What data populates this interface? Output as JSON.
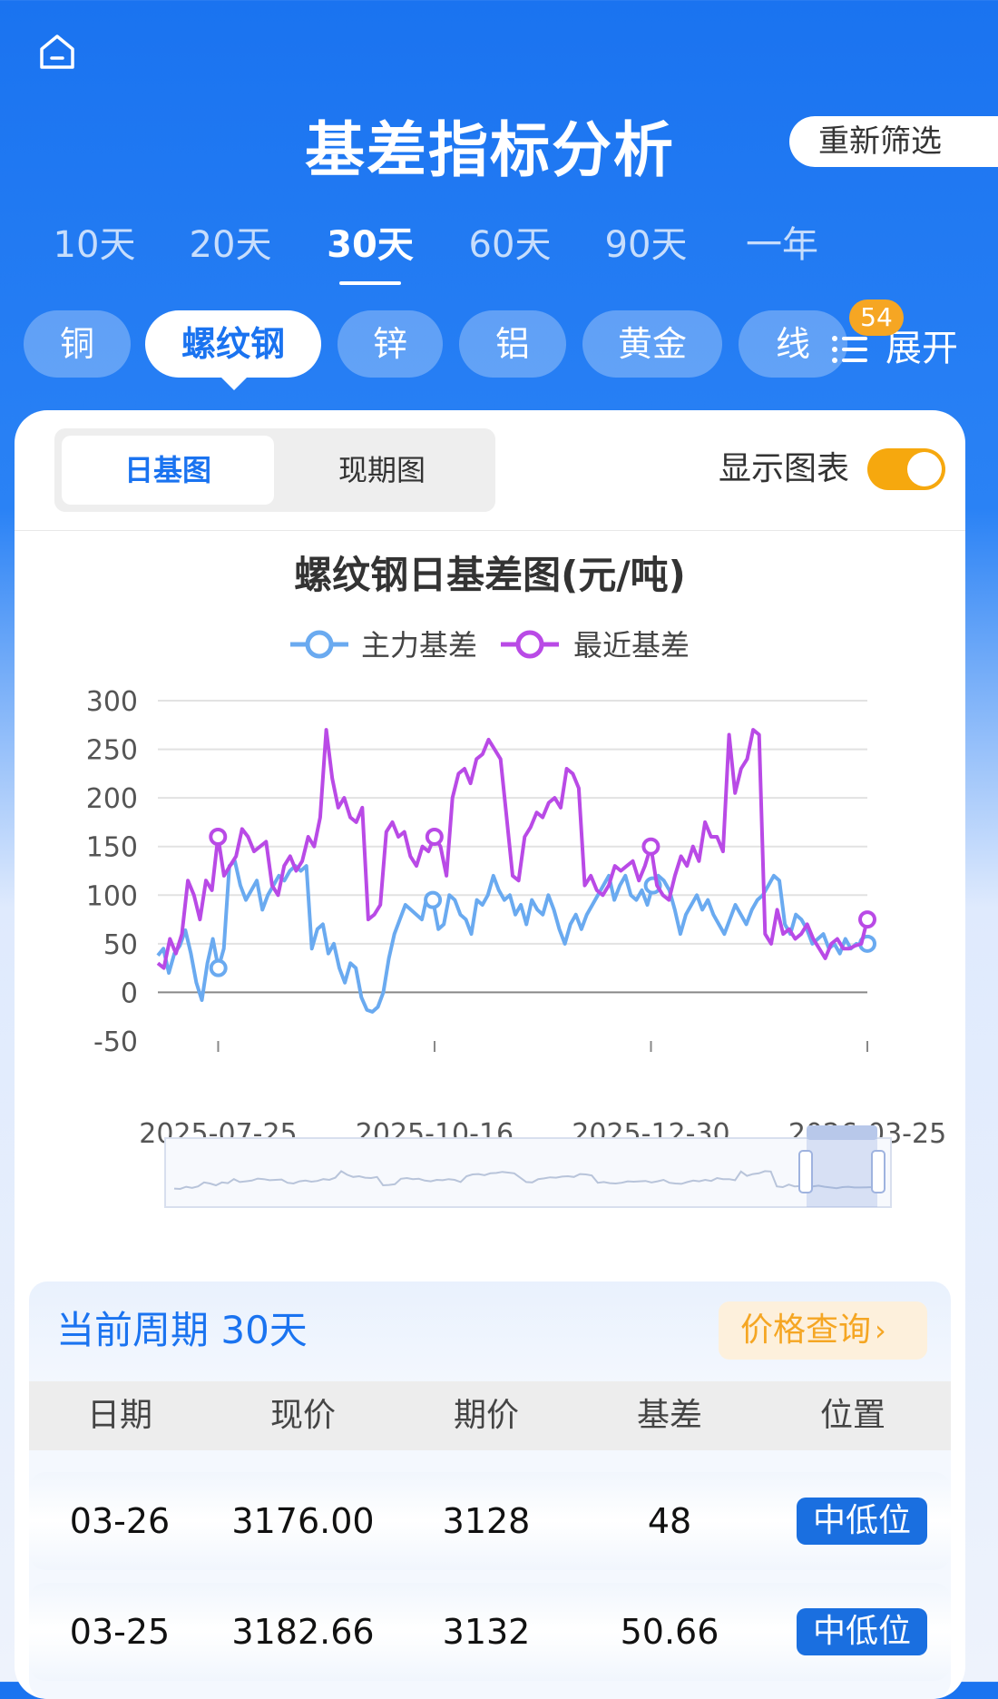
{
  "header": {
    "title": "基差指标分析",
    "refilter_label": "重新筛选"
  },
  "period_tabs": [
    {
      "label": "10天",
      "active": false
    },
    {
      "label": "20天",
      "active": false
    },
    {
      "label": "30天",
      "active": true
    },
    {
      "label": "60天",
      "active": false
    },
    {
      "label": "90天",
      "active": false
    },
    {
      "label": "一年",
      "active": false
    }
  ],
  "commodities": [
    {
      "label": "铜",
      "active": false
    },
    {
      "label": "螺纹钢",
      "active": true
    },
    {
      "label": "锌",
      "active": false
    },
    {
      "label": "铝",
      "active": false
    },
    {
      "label": "黄金",
      "active": false
    },
    {
      "label": "线",
      "active": false
    }
  ],
  "expand": {
    "label": "展开",
    "badge": "54",
    "icon": "list-icon"
  },
  "view_toggle": {
    "options": [
      "日基图",
      "现期图"
    ],
    "active": 0
  },
  "show_chart": {
    "label": "显示图表",
    "enabled": true
  },
  "colors": {
    "accent": "#1a73f0",
    "series_main": "#6aaaf0",
    "series_recent": "#b94ae6",
    "badge": "#f6a623"
  },
  "chart_data": {
    "type": "line",
    "title": "螺纹钢日基差图(元/吨)",
    "x_ticks": [
      "2025-07-25",
      "2025-10-16",
      "2025-12-30",
      "2026-03-25"
    ],
    "y_ticks": [
      300,
      250,
      200,
      150,
      100,
      50,
      0,
      -50
    ],
    "ylim": [
      -50,
      300
    ],
    "legend_position": "top-center",
    "grid": true,
    "series": [
      {
        "name": "主力基差",
        "values": [
          38,
          45,
          20,
          40,
          48,
          64,
          40,
          10,
          -8,
          30,
          55,
          25,
          45,
          130,
          135,
          110,
          95,
          105,
          115,
          85,
          100,
          110,
          120,
          115,
          125,
          130,
          125,
          130,
          45,
          65,
          70,
          40,
          50,
          25,
          10,
          30,
          25,
          -5,
          -18,
          -20,
          -15,
          0,
          35,
          60,
          75,
          90,
          85,
          80,
          75,
          100,
          95,
          65,
          70,
          100,
          95,
          80,
          75,
          60,
          95,
          90,
          100,
          120,
          105,
          95,
          100,
          80,
          90,
          70,
          95,
          85,
          80,
          100,
          85,
          65,
          50,
          70,
          80,
          65,
          80,
          90,
          100,
          110,
          120,
          95,
          110,
          120,
          100,
          95,
          105,
          90,
          110,
          120,
          115,
          105,
          85,
          60,
          80,
          90,
          100,
          85,
          95,
          80,
          70,
          60,
          75,
          90,
          80,
          70,
          85,
          95,
          100,
          110,
          120,
          115,
          70,
          60,
          80,
          75,
          65,
          50,
          55,
          60,
          45,
          50,
          40,
          55,
          45,
          50,
          48,
          50
        ]
      },
      {
        "name": "最近基差",
        "values": [
          30,
          25,
          55,
          40,
          60,
          115,
          100,
          75,
          115,
          105,
          160,
          120,
          130,
          140,
          168,
          160,
          145,
          150,
          155,
          110,
          100,
          130,
          140,
          125,
          135,
          160,
          150,
          180,
          270,
          220,
          190,
          200,
          180,
          175,
          190,
          75,
          80,
          90,
          165,
          175,
          160,
          165,
          140,
          130,
          150,
          145,
          160,
          150,
          120,
          200,
          225,
          230,
          215,
          240,
          245,
          260,
          250,
          240,
          180,
          120,
          115,
          160,
          170,
          185,
          180,
          195,
          200,
          190,
          230,
          225,
          210,
          110,
          120,
          105,
          100,
          110,
          130,
          125,
          130,
          135,
          115,
          130,
          150,
          110,
          100,
          95,
          120,
          140,
          130,
          150,
          135,
          175,
          160,
          160,
          145,
          265,
          205,
          230,
          240,
          270,
          265,
          60,
          50,
          85,
          60,
          65,
          55,
          60,
          70,
          55,
          45,
          35,
          50,
          55,
          45,
          45,
          48,
          50,
          75
        ]
      }
    ]
  },
  "period": {
    "label": "当前周期 30天",
    "query_label": "价格查询"
  },
  "table": {
    "headers": [
      "日期",
      "现价",
      "期价",
      "基差",
      "位置"
    ],
    "rows": [
      {
        "date": "03-26",
        "spot": "3176.00",
        "futures": "3128",
        "basis": "48",
        "position": "中低位"
      },
      {
        "date": "03-25",
        "spot": "3182.66",
        "futures": "3132",
        "basis": "50.66",
        "position": "中低位"
      }
    ]
  }
}
